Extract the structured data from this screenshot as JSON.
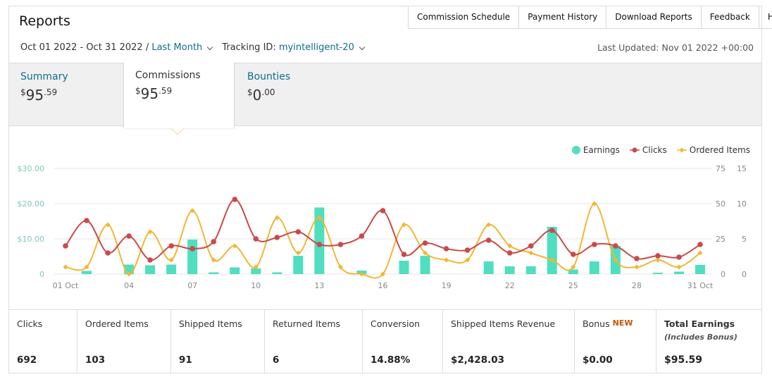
{
  "header": {
    "title": "Reports",
    "nav": [
      "Commission Schedule",
      "Payment History",
      "Download Reports",
      "Feedback",
      "Help"
    ]
  },
  "filters": {
    "date_range": "Oct 01 2022 - Oct 31 2022 /",
    "period": "Last Month",
    "tracking_label": "Tracking ID:",
    "tracking_id": "myintelligent-20",
    "last_updated": "Last Updated: Nov 01 2022 +00:00"
  },
  "tabs": {
    "summary": {
      "label": "Summary",
      "currency": "$",
      "whole": "95",
      "cents": ".59"
    },
    "commissions": {
      "label": "Commissions",
      "currency": "$",
      "whole": "95",
      "cents": ".59"
    },
    "bounties": {
      "label": "Bounties",
      "currency": "$",
      "whole": "0",
      "cents": ".00"
    }
  },
  "colors": {
    "earnings": "#4fdec0",
    "clicks": "#c94a4a",
    "ordered_items": "#f2b631",
    "grid": "#e6e6e6",
    "axis_left": "#7fc9b4",
    "axis_right": "#888888",
    "link": "#0f6e8a"
  },
  "chart_data": {
    "type": "bar",
    "legend": [
      "Earnings",
      "Clicks",
      "Ordered Items"
    ],
    "legend_position": "top-right",
    "grid": true,
    "x_ticks": [
      "01 Oct",
      "04",
      "07",
      "10",
      "13",
      "16",
      "19",
      "22",
      "25",
      "28",
      "31 Oct"
    ],
    "y_left_ticks": [
      "0",
      "$10.00",
      "$20.00",
      "$30.00"
    ],
    "y_left_range": [
      0,
      30
    ],
    "y_right1_ticks": [
      "0",
      "25",
      "50",
      "75"
    ],
    "y_right1_range": [
      0,
      75
    ],
    "y_right2_ticks": [
      "0",
      "5",
      "10",
      "15"
    ],
    "y_right2_range": [
      0,
      15
    ],
    "x": [
      1,
      2,
      3,
      4,
      5,
      6,
      7,
      8,
      9,
      10,
      11,
      12,
      13,
      14,
      15,
      16,
      17,
      18,
      19,
      20,
      21,
      22,
      23,
      24,
      25,
      26,
      27,
      28,
      29,
      30,
      31
    ],
    "series": [
      {
        "name": "Earnings",
        "type": "bar",
        "axis": "left",
        "values": [
          0,
          0.9,
          0,
          2.7,
          2.5,
          2.7,
          9.8,
          0.5,
          1.9,
          1.6,
          0.5,
          5.2,
          18.9,
          0,
          1.0,
          0,
          3.8,
          5.2,
          0,
          0,
          3.6,
          2.2,
          2.2,
          13.4,
          1.3,
          3.6,
          8.0,
          0,
          0.4,
          0.7,
          2.6
        ]
      },
      {
        "name": "Clicks",
        "type": "line",
        "axis": "right1",
        "values": [
          20,
          38,
          15,
          27,
          10,
          20,
          18,
          23,
          53,
          25,
          26,
          30,
          21,
          21,
          27,
          45,
          14,
          22,
          18,
          17,
          24,
          15,
          20,
          31,
          14,
          21,
          20,
          11,
          13,
          12,
          21
        ]
      },
      {
        "name": "Ordered Items",
        "type": "line",
        "axis": "right2",
        "values": [
          1,
          1,
          7,
          0,
          6,
          2,
          9,
          2,
          4,
          1,
          8,
          3,
          8,
          1,
          0,
          0,
          7,
          3,
          2,
          2,
          7,
          4,
          3,
          2,
          1,
          10,
          2,
          1,
          2,
          1,
          3
        ]
      }
    ]
  },
  "stats": [
    {
      "label": "Clicks",
      "value": "692"
    },
    {
      "label": "Ordered Items",
      "value": "103"
    },
    {
      "label": "Shipped Items",
      "value": "91"
    },
    {
      "label": "Returned Items",
      "value": "6"
    },
    {
      "label": "Conversion",
      "value": "14.88%"
    },
    {
      "label": "Shipped Items Revenue",
      "value": "$2,428.03"
    },
    {
      "label": "Bonus",
      "badge": "NEW",
      "value": "$0.00"
    },
    {
      "label": "Total Earnings",
      "sublabel": "(Includes Bonus)",
      "value": "$95.59"
    }
  ]
}
